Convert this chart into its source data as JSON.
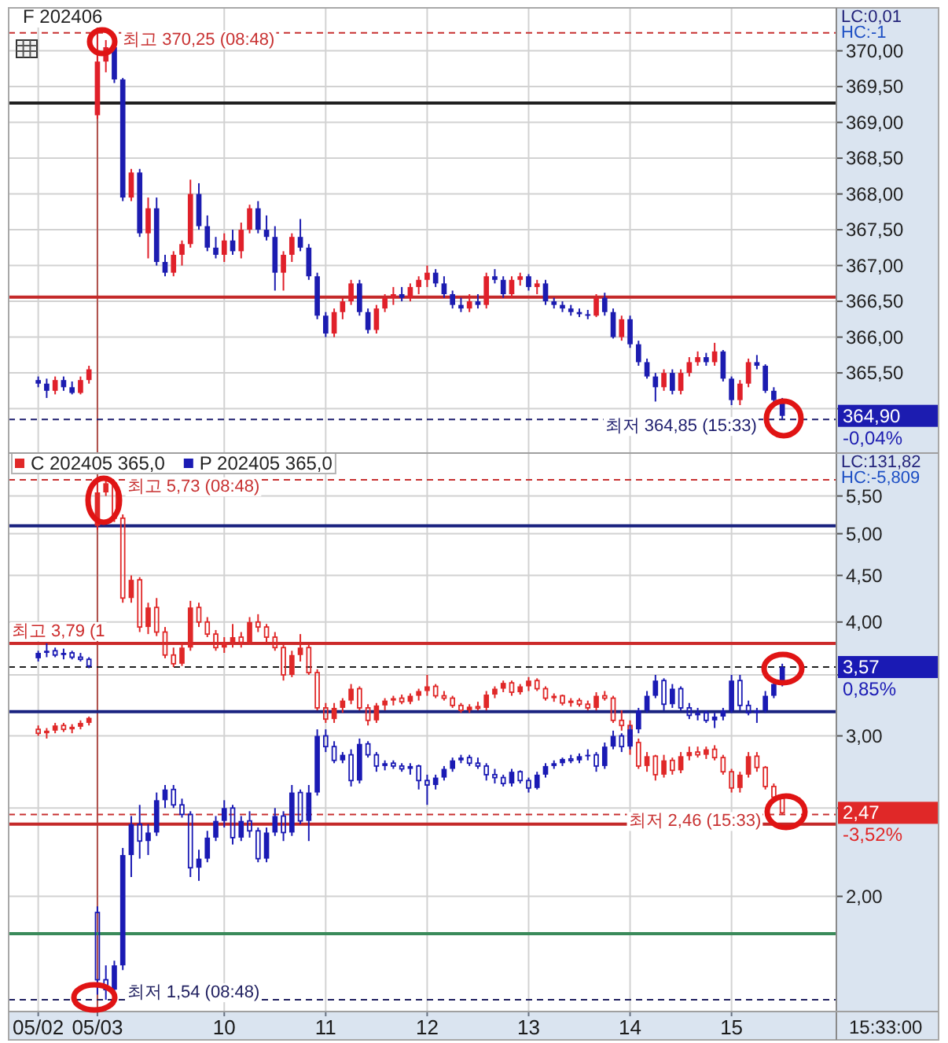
{
  "chart_data": [
    {
      "type": "candlestick",
      "title": "F 202406",
      "categories": [
        "05/02",
        null,
        null,
        null,
        null,
        null,
        null,
        "05/03",
        null,
        null,
        null,
        null,
        null,
        null,
        null,
        null,
        null,
        null,
        null,
        null,
        null,
        null,
        "10",
        null,
        null,
        null,
        null,
        null,
        null,
        null,
        null,
        null,
        null,
        null,
        "11",
        null,
        null,
        null,
        null,
        null,
        null,
        null,
        null,
        null,
        null,
        null,
        "12",
        null,
        null,
        null,
        null,
        null,
        null,
        null,
        null,
        null,
        null,
        null,
        "13",
        null,
        null,
        null,
        null,
        null,
        null,
        null,
        null,
        null,
        null,
        null,
        "14",
        null,
        null,
        null,
        null,
        null,
        null,
        null,
        null,
        null,
        null,
        null,
        "15",
        null,
        null,
        null,
        null,
        null,
        null
      ],
      "ohlc": [
        [
          365.4,
          365.45,
          365.3,
          365.35
        ],
        [
          365.35,
          365.42,
          365.15,
          365.25
        ],
        [
          365.25,
          365.45,
          365.2,
          365.4
        ],
        [
          365.4,
          365.45,
          365.25,
          365.3
        ],
        [
          365.3,
          365.38,
          365.2,
          365.22
        ],
        [
          365.22,
          365.45,
          365.2,
          365.4
        ],
        [
          365.4,
          365.6,
          365.35,
          365.55
        ],
        [
          369.1,
          370.25,
          369.05,
          369.85
        ],
        [
          369.85,
          370.15,
          369.7,
          370.05
        ],
        [
          370.05,
          370.1,
          369.55,
          369.6
        ],
        [
          369.6,
          369.62,
          367.9,
          367.95
        ],
        [
          367.95,
          368.35,
          367.9,
          368.3
        ],
        [
          368.3,
          368.35,
          367.4,
          367.45
        ],
        [
          367.45,
          367.95,
          367.1,
          367.8
        ],
        [
          367.8,
          367.95,
          367.0,
          367.05
        ],
        [
          367.05,
          367.15,
          366.85,
          366.9
        ],
        [
          366.9,
          367.2,
          366.85,
          367.15
        ],
        [
          367.15,
          367.35,
          367.0,
          367.3
        ],
        [
          367.3,
          368.2,
          367.25,
          368.0
        ],
        [
          368.0,
          368.15,
          367.5,
          367.55
        ],
        [
          367.55,
          367.7,
          367.2,
          367.25
        ],
        [
          367.25,
          367.4,
          367.1,
          367.15
        ],
        [
          367.15,
          367.45,
          367.05,
          367.35
        ],
        [
          367.35,
          367.5,
          367.15,
          367.2
        ],
        [
          367.2,
          367.6,
          367.1,
          367.5
        ],
        [
          367.5,
          367.85,
          367.45,
          367.8
        ],
        [
          367.8,
          367.9,
          367.45,
          367.5
        ],
        [
          367.5,
          367.7,
          367.35,
          367.4
        ],
        [
          367.4,
          367.55,
          366.65,
          366.9
        ],
        [
          366.9,
          367.2,
          366.65,
          367.15
        ],
        [
          367.15,
          367.45,
          367.05,
          367.4
        ],
        [
          367.4,
          367.65,
          367.2,
          367.25
        ],
        [
          367.25,
          367.3,
          366.8,
          366.85
        ],
        [
          366.85,
          366.9,
          366.25,
          366.3
        ],
        [
          366.3,
          366.35,
          366.0,
          366.05
        ],
        [
          366.05,
          366.4,
          366.0,
          366.35
        ],
        [
          366.35,
          366.55,
          366.25,
          366.5
        ],
        [
          366.5,
          366.8,
          366.45,
          366.75
        ],
        [
          366.75,
          366.8,
          366.3,
          366.35
        ],
        [
          366.35,
          366.4,
          366.05,
          366.1
        ],
        [
          366.1,
          366.45,
          366.05,
          366.4
        ],
        [
          366.4,
          366.6,
          366.35,
          366.55
        ],
        [
          366.55,
          366.7,
          366.45,
          366.6
        ],
        [
          366.6,
          366.7,
          366.5,
          366.55
        ],
        [
          366.55,
          366.75,
          366.5,
          366.7
        ],
        [
          366.7,
          366.85,
          366.6,
          366.8
        ],
        [
          366.8,
          367.0,
          366.7,
          366.9
        ],
        [
          366.9,
          366.95,
          366.7,
          366.75
        ],
        [
          366.75,
          366.85,
          366.55,
          366.6
        ],
        [
          366.6,
          366.65,
          366.4,
          366.45
        ],
        [
          366.45,
          366.55,
          366.35,
          366.4
        ],
        [
          366.4,
          366.6,
          366.35,
          366.5
        ],
        [
          366.5,
          366.6,
          366.4,
          366.45
        ],
        [
          366.45,
          366.9,
          366.4,
          366.85
        ],
        [
          366.85,
          366.95,
          366.75,
          366.8
        ],
        [
          366.8,
          366.85,
          366.55,
          366.6
        ],
        [
          366.6,
          366.85,
          366.55,
          366.8
        ],
        [
          366.8,
          366.9,
          366.72,
          366.85
        ],
        [
          366.85,
          366.88,
          366.65,
          366.7
        ],
        [
          366.7,
          366.8,
          366.6,
          366.75
        ],
        [
          366.75,
          366.8,
          366.45,
          366.5
        ],
        [
          366.5,
          366.55,
          366.4,
          366.45
        ],
        [
          366.45,
          366.5,
          366.35,
          366.4
        ],
        [
          366.4,
          366.45,
          366.3,
          366.35
        ],
        [
          366.35,
          366.4,
          366.28,
          366.32
        ],
        [
          366.32,
          366.38,
          366.25,
          366.3
        ],
        [
          366.3,
          366.6,
          366.28,
          366.55
        ],
        [
          366.55,
          366.62,
          366.3,
          366.35
        ],
        [
          366.35,
          366.4,
          365.98,
          366.0
        ],
        [
          366.0,
          366.3,
          365.95,
          366.25
        ],
        [
          366.25,
          366.3,
          365.85,
          365.9
        ],
        [
          365.9,
          365.95,
          365.6,
          365.65
        ],
        [
          365.65,
          365.7,
          365.42,
          365.45
        ],
        [
          365.45,
          365.5,
          365.1,
          365.3
        ],
        [
          365.3,
          365.55,
          365.25,
          365.5
        ],
        [
          365.5,
          365.55,
          365.2,
          365.25
        ],
        [
          365.25,
          365.55,
          365.2,
          365.5
        ],
        [
          365.5,
          365.72,
          365.45,
          365.65
        ],
        [
          365.65,
          365.8,
          365.6,
          365.72
        ],
        [
          365.72,
          365.78,
          365.6,
          365.65
        ],
        [
          365.65,
          365.92,
          365.6,
          365.8
        ],
        [
          365.8,
          365.82,
          365.38,
          365.42
        ],
        [
          365.42,
          365.45,
          365.05,
          365.12
        ],
        [
          365.12,
          365.4,
          365.05,
          365.35
        ],
        [
          365.35,
          365.7,
          365.3,
          365.65
        ],
        [
          365.65,
          365.75,
          365.55,
          365.6
        ],
        [
          365.6,
          365.62,
          365.22,
          365.25
        ],
        [
          365.25,
          365.3,
          365.08,
          365.12
        ],
        [
          365.12,
          365.15,
          364.85,
          364.9
        ]
      ],
      "colors": [
        "#1c1cb0",
        "#1c1cb0",
        "#e0202a",
        "#1c1cb0",
        "#1c1cb0",
        "#e0202a",
        "#e0202a",
        "#e0202a",
        "#e0202a",
        "#1c1cb0",
        "#1c1cb0",
        "#e0202a",
        "#1c1cb0",
        "#e0202a",
        "#1c1cb0",
        "#1c1cb0",
        "#e0202a",
        "#e0202a",
        "#e0202a",
        "#1c1cb0",
        "#1c1cb0",
        "#1c1cb0",
        "#e0202a",
        "#1c1cb0",
        "#e0202a",
        "#e0202a",
        "#1c1cb0",
        "#1c1cb0",
        "#1c1cb0",
        "#e0202a",
        "#e0202a",
        "#1c1cb0",
        "#1c1cb0",
        "#1c1cb0",
        "#1c1cb0",
        "#e0202a",
        "#e0202a",
        "#e0202a",
        "#1c1cb0",
        "#1c1cb0",
        "#e0202a",
        "#e0202a",
        "#e0202a",
        "#1c1cb0",
        "#e0202a",
        "#e0202a",
        "#e0202a",
        "#1c1cb0",
        "#1c1cb0",
        "#1c1cb0",
        "#1c1cb0",
        "#e0202a",
        "#1c1cb0",
        "#e0202a",
        "#1c1cb0",
        "#1c1cb0",
        "#e0202a",
        "#e0202a",
        "#1c1cb0",
        "#e0202a",
        "#1c1cb0",
        "#1c1cb0",
        "#1c1cb0",
        "#1c1cb0",
        "#1c1cb0",
        "#1c1cb0",
        "#e0202a",
        "#1c1cb0",
        "#1c1cb0",
        "#e0202a",
        "#1c1cb0",
        "#1c1cb0",
        "#1c1cb0",
        "#1c1cb0",
        "#e0202a",
        "#1c1cb0",
        "#e0202a",
        "#e0202a",
        "#e0202a",
        "#1c1cb0",
        "#e0202a",
        "#1c1cb0",
        "#1c1cb0",
        "#e0202a",
        "#e0202a",
        "#1c1cb0",
        "#1c1cb0",
        "#1c1cb0",
        "#1c1cb0"
      ],
      "ylim": [
        364.38,
        370.6
      ],
      "yticks": [
        {
          "value": 365,
          "label": null
        },
        {
          "value": 365.5,
          "label": "365,50"
        },
        {
          "value": 366,
          "label": "366,00"
        },
        {
          "value": 366.5,
          "label": "366,50"
        },
        {
          "value": 367,
          "label": "367,00"
        },
        {
          "value": 367.5,
          "label": "367,50"
        },
        {
          "value": 368,
          "label": "368,00"
        },
        {
          "value": 368.5,
          "label": "368,50"
        },
        {
          "value": 369,
          "label": "369,00"
        },
        {
          "value": 369.5,
          "label": "369,50"
        },
        {
          "value": 370,
          "label": "370,00"
        }
      ],
      "grid": true,
      "tick_labels": "y",
      "ref_lines": [
        {
          "axis": "x",
          "value": "05/03",
          "color": "#b0504a"
        },
        {
          "axis": "y",
          "value": 370.25,
          "label": "최고 370,25 (08:48)",
          "color": "#c83232",
          "line_style": "dashed"
        },
        {
          "axis": "y",
          "value": 369.27,
          "color": "#202020"
        },
        {
          "axis": "y",
          "value": 366.56,
          "color": "#c42a2a"
        },
        {
          "axis": "y",
          "value": 364.85,
          "label": "최저 364,85 (15:33)",
          "color": "#1e1e6e",
          "line_style": "dashed"
        }
      ],
      "annotations": [
        "LC:0,01",
        "HC:-1",
        "364,90",
        "-0,04%"
      ]
    },
    {
      "type": "candlestick",
      "categories": [
        "05/02",
        null,
        null,
        null,
        null,
        null,
        null,
        "05/03",
        null,
        null,
        null,
        null,
        null,
        null,
        null,
        null,
        null,
        null,
        null,
        null,
        null,
        null,
        "10",
        null,
        null,
        null,
        null,
        null,
        null,
        null,
        null,
        null,
        null,
        null,
        "11",
        null,
        null,
        null,
        null,
        null,
        null,
        null,
        null,
        null,
        null,
        null,
        "12",
        null,
        null,
        null,
        null,
        null,
        null,
        null,
        null,
        null,
        null,
        null,
        "13",
        null,
        null,
        null,
        null,
        null,
        null,
        null,
        null,
        null,
        null,
        null,
        "14",
        null,
        null,
        null,
        null,
        null,
        null,
        null,
        null,
        null,
        null,
        null,
        "15",
        null,
        null,
        null,
        null,
        null,
        null
      ],
      "series": [
        {
          "name": "C 202405 365,0",
          "color": "#e02828",
          "ohlc": [
            [
              3.05,
              3.08,
              3.0,
              3.02
            ],
            [
              3.02,
              3.06,
              2.98,
              3.04
            ],
            [
              3.04,
              3.1,
              3.02,
              3.08
            ],
            [
              3.08,
              3.1,
              3.03,
              3.05
            ],
            [
              3.05,
              3.09,
              3.02,
              3.07
            ],
            [
              3.07,
              3.12,
              3.05,
              3.1
            ],
            [
              3.1,
              3.15,
              3.08,
              3.14
            ],
            [
              5.1,
              5.73,
              5.05,
              5.55
            ],
            [
              5.55,
              5.72,
              5.5,
              5.68
            ],
            [
              5.68,
              5.7,
              5.15,
              5.2
            ],
            [
              5.2,
              5.25,
              4.2,
              4.25
            ],
            [
              4.25,
              4.5,
              4.2,
              4.45
            ],
            [
              4.45,
              4.48,
              3.9,
              3.95
            ],
            [
              3.95,
              4.2,
              3.88,
              4.15
            ],
            [
              4.15,
              4.25,
              3.86,
              3.9
            ],
            [
              3.9,
              3.95,
              3.65,
              3.68
            ],
            [
              3.68,
              3.75,
              3.57,
              3.6
            ],
            [
              3.6,
              3.8,
              3.58,
              3.75
            ],
            [
              3.75,
              4.22,
              3.72,
              4.15
            ],
            [
              4.15,
              4.2,
              3.95,
              4.0
            ],
            [
              4.0,
              4.05,
              3.85,
              3.88
            ],
            [
              3.88,
              3.92,
              3.72,
              3.75
            ],
            [
              3.75,
              3.85,
              3.7,
              3.8
            ],
            [
              3.8,
              3.98,
              3.75,
              3.85
            ],
            [
              3.85,
              3.9,
              3.75,
              3.8
            ],
            [
              3.8,
              4.05,
              3.78,
              4.0
            ],
            [
              4.0,
              4.08,
              3.9,
              3.95
            ],
            [
              3.95,
              3.98,
              3.8,
              3.85
            ],
            [
              3.85,
              3.9,
              3.72,
              3.75
            ],
            [
              3.75,
              3.78,
              3.45,
              3.5
            ],
            [
              3.5,
              3.72,
              3.48,
              3.68
            ],
            [
              3.68,
              3.88,
              3.62,
              3.75
            ],
            [
              3.75,
              3.78,
              3.5,
              3.52
            ],
            [
              3.52,
              3.55,
              3.2,
              3.22
            ],
            [
              3.22,
              3.26,
              3.1,
              3.13
            ],
            [
              3.13,
              3.26,
              3.1,
              3.22
            ],
            [
              3.22,
              3.3,
              3.18,
              3.28
            ],
            [
              3.28,
              3.42,
              3.25,
              3.38
            ],
            [
              3.38,
              3.4,
              3.2,
              3.22
            ],
            [
              3.22,
              3.25,
              3.08,
              3.12
            ],
            [
              3.12,
              3.26,
              3.1,
              3.24
            ],
            [
              3.24,
              3.3,
              3.2,
              3.28
            ],
            [
              3.28,
              3.32,
              3.24,
              3.3
            ],
            [
              3.3,
              3.33,
              3.25,
              3.27
            ],
            [
              3.27,
              3.34,
              3.25,
              3.32
            ],
            [
              3.32,
              3.38,
              3.28,
              3.36
            ],
            [
              3.36,
              3.5,
              3.32,
              3.4
            ],
            [
              3.4,
              3.42,
              3.3,
              3.32
            ],
            [
              3.32,
              3.36,
              3.28,
              3.3
            ],
            [
              3.3,
              3.32,
              3.22,
              3.24
            ],
            [
              3.24,
              3.26,
              3.18,
              3.2
            ],
            [
              3.2,
              3.25,
              3.18,
              3.23
            ],
            [
              3.23,
              3.27,
              3.2,
              3.22
            ],
            [
              3.22,
              3.36,
              3.2,
              3.33
            ],
            [
              3.33,
              3.4,
              3.3,
              3.38
            ],
            [
              3.38,
              3.45,
              3.35,
              3.43
            ],
            [
              3.43,
              3.45,
              3.32,
              3.35
            ],
            [
              3.35,
              3.42,
              3.33,
              3.4
            ],
            [
              3.4,
              3.48,
              3.36,
              3.45
            ],
            [
              3.45,
              3.47,
              3.36,
              3.38
            ],
            [
              3.38,
              3.4,
              3.28,
              3.3
            ],
            [
              3.3,
              3.34,
              3.27,
              3.32
            ],
            [
              3.32,
              3.33,
              3.24,
              3.26
            ],
            [
              3.26,
              3.3,
              3.23,
              3.28
            ],
            [
              3.28,
              3.3,
              3.23,
              3.25
            ],
            [
              3.25,
              3.28,
              3.2,
              3.22
            ],
            [
              3.22,
              3.35,
              3.2,
              3.32
            ],
            [
              3.32,
              3.36,
              3.28,
              3.3
            ],
            [
              3.3,
              3.32,
              3.1,
              3.12
            ],
            [
              3.12,
              3.2,
              3.04,
              3.08
            ],
            [
              3.08,
              3.12,
              2.86,
              2.95
            ],
            [
              2.95,
              2.98,
              2.76,
              2.78
            ],
            [
              2.78,
              2.88,
              2.74,
              2.85
            ],
            [
              2.85,
              2.86,
              2.68,
              2.72
            ],
            [
              2.72,
              2.86,
              2.7,
              2.82
            ],
            [
              2.82,
              2.84,
              2.72,
              2.75
            ],
            [
              2.75,
              2.88,
              2.73,
              2.85
            ],
            [
              2.85,
              2.92,
              2.82,
              2.88
            ],
            [
              2.88,
              2.92,
              2.84,
              2.86
            ],
            [
              2.86,
              2.92,
              2.83,
              2.9
            ],
            [
              2.9,
              2.93,
              2.82,
              2.84
            ],
            [
              2.84,
              2.86,
              2.72,
              2.74
            ],
            [
              2.74,
              2.76,
              2.6,
              2.63
            ],
            [
              2.63,
              2.74,
              2.6,
              2.72
            ],
            [
              2.72,
              2.88,
              2.7,
              2.85
            ],
            [
              2.85,
              2.88,
              2.74,
              2.77
            ],
            [
              2.77,
              2.78,
              2.62,
              2.64
            ],
            [
              2.64,
              2.66,
              2.55,
              2.57
            ],
            [
              2.57,
              2.58,
              2.46,
              2.47
            ]
          ]
        },
        {
          "name": "P 202405 365,0",
          "color": "#1a1ab4",
          "ohlc": [
            [
              3.65,
              3.72,
              3.62,
              3.7
            ],
            [
              3.7,
              3.79,
              3.66,
              3.72
            ],
            [
              3.72,
              3.75,
              3.66,
              3.68
            ],
            [
              3.68,
              3.74,
              3.64,
              3.7
            ],
            [
              3.7,
              3.72,
              3.64,
              3.66
            ],
            [
              3.66,
              3.7,
              3.62,
              3.64
            ],
            [
              3.64,
              3.66,
              3.56,
              3.58
            ],
            [
              1.92,
              1.95,
              1.56,
              1.62
            ],
            [
              1.62,
              1.68,
              1.54,
              1.58
            ],
            [
              1.58,
              1.7,
              1.56,
              1.68
            ],
            [
              1.68,
              2.26,
              1.66,
              2.22
            ],
            [
              2.22,
              2.45,
              2.1,
              2.4
            ],
            [
              2.4,
              2.52,
              2.2,
              2.3
            ],
            [
              2.3,
              2.4,
              2.22,
              2.35
            ],
            [
              2.35,
              2.6,
              2.33,
              2.55
            ],
            [
              2.55,
              2.65,
              2.5,
              2.62
            ],
            [
              2.62,
              2.65,
              2.5,
              2.52
            ],
            [
              2.52,
              2.56,
              2.44,
              2.46
            ],
            [
              2.46,
              2.48,
              2.1,
              2.15
            ],
            [
              2.15,
              2.25,
              2.08,
              2.2
            ],
            [
              2.2,
              2.36,
              2.18,
              2.32
            ],
            [
              2.32,
              2.45,
              2.3,
              2.42
            ],
            [
              2.42,
              2.55,
              2.38,
              2.5
            ],
            [
              2.5,
              2.52,
              2.28,
              2.32
            ],
            [
              2.32,
              2.45,
              2.3,
              2.42
            ],
            [
              2.42,
              2.48,
              2.32,
              2.36
            ],
            [
              2.36,
              2.38,
              2.18,
              2.2
            ],
            [
              2.2,
              2.38,
              2.18,
              2.35
            ],
            [
              2.35,
              2.5,
              2.33,
              2.45
            ],
            [
              2.45,
              2.48,
              2.3,
              2.35
            ],
            [
              2.35,
              2.65,
              2.33,
              2.6
            ],
            [
              2.6,
              2.62,
              2.4,
              2.42
            ],
            [
              2.42,
              2.65,
              2.3,
              2.6
            ],
            [
              2.6,
              3.05,
              2.58,
              3.0
            ],
            [
              3.0,
              3.05,
              2.88,
              2.92
            ],
            [
              2.92,
              2.96,
              2.8,
              2.82
            ],
            [
              2.82,
              2.88,
              2.8,
              2.86
            ],
            [
              2.86,
              2.9,
              2.64,
              2.68
            ],
            [
              2.68,
              2.98,
              2.66,
              2.94
            ],
            [
              2.94,
              2.96,
              2.84,
              2.86
            ],
            [
              2.86,
              2.88,
              2.74,
              2.78
            ],
            [
              2.78,
              2.82,
              2.75,
              2.8
            ],
            [
              2.8,
              2.82,
              2.76,
              2.78
            ],
            [
              2.78,
              2.8,
              2.74,
              2.76
            ],
            [
              2.76,
              2.8,
              2.72,
              2.78
            ],
            [
              2.78,
              2.79,
              2.62,
              2.68
            ],
            [
              2.68,
              2.72,
              2.52,
              2.65
            ],
            [
              2.65,
              2.72,
              2.62,
              2.7
            ],
            [
              2.7,
              2.78,
              2.68,
              2.76
            ],
            [
              2.76,
              2.84,
              2.74,
              2.82
            ],
            [
              2.82,
              2.86,
              2.8,
              2.84
            ],
            [
              2.84,
              2.86,
              2.78,
              2.8
            ],
            [
              2.8,
              2.84,
              2.76,
              2.78
            ],
            [
              2.78,
              2.8,
              2.68,
              2.72
            ],
            [
              2.72,
              2.76,
              2.66,
              2.7
            ],
            [
              2.7,
              2.72,
              2.64,
              2.66
            ],
            [
              2.66,
              2.76,
              2.64,
              2.74
            ],
            [
              2.74,
              2.75,
              2.66,
              2.68
            ],
            [
              2.68,
              2.7,
              2.6,
              2.63
            ],
            [
              2.63,
              2.74,
              2.62,
              2.72
            ],
            [
              2.72,
              2.8,
              2.7,
              2.78
            ],
            [
              2.78,
              2.82,
              2.76,
              2.8
            ],
            [
              2.8,
              2.84,
              2.78,
              2.83
            ],
            [
              2.83,
              2.86,
              2.8,
              2.82
            ],
            [
              2.82,
              2.87,
              2.8,
              2.85
            ],
            [
              2.85,
              2.9,
              2.82,
              2.86
            ],
            [
              2.86,
              2.88,
              2.74,
              2.78
            ],
            [
              2.78,
              2.95,
              2.76,
              2.92
            ],
            [
              2.92,
              3.04,
              2.9,
              3.0
            ],
            [
              3.0,
              3.02,
              2.88,
              2.92
            ],
            [
              2.92,
              3.08,
              2.9,
              3.05
            ],
            [
              3.05,
              3.22,
              3.02,
              3.2
            ],
            [
              3.2,
              3.36,
              3.18,
              3.32
            ],
            [
              3.32,
              3.5,
              3.3,
              3.45
            ],
            [
              3.45,
              3.47,
              3.2,
              3.25
            ],
            [
              3.25,
              3.42,
              3.22,
              3.38
            ],
            [
              3.38,
              3.4,
              3.2,
              3.22
            ],
            [
              3.22,
              3.26,
              3.13,
              3.16
            ],
            [
              3.16,
              3.22,
              3.12,
              3.18
            ],
            [
              3.18,
              3.2,
              3.1,
              3.12
            ],
            [
              3.12,
              3.18,
              3.06,
              3.15
            ],
            [
              3.15,
              3.22,
              3.12,
              3.2
            ],
            [
              3.2,
              3.5,
              3.18,
              3.45
            ],
            [
              3.45,
              3.5,
              3.2,
              3.24
            ],
            [
              3.24,
              3.28,
              3.16,
              3.18
            ],
            [
              3.18,
              3.22,
              3.1,
              3.2
            ],
            [
              3.2,
              3.36,
              3.18,
              3.32
            ],
            [
              3.32,
              3.45,
              3.3,
              3.42
            ],
            [
              3.42,
              3.6,
              3.4,
              3.57
            ]
          ]
        }
      ],
      "legend": "top left",
      "log": "y",
      "ylim": [
        1.495,
        6.13
      ],
      "yticks": [
        {
          "value": 2,
          "label": "2,00"
        },
        {
          "value": 2.5,
          "label": null
        },
        {
          "value": 3,
          "label": "3,00"
        },
        {
          "value": 3.5,
          "label": null
        },
        {
          "value": 4,
          "label": "4,00"
        },
        {
          "value": 4.5,
          "label": "4,50"
        },
        {
          "value": 5,
          "label": "5,00"
        },
        {
          "value": 5.5,
          "label": "5,50"
        }
      ],
      "grid": true,
      "xlabel": "15:33:00",
      "ref_lines": [
        {
          "axis": "x",
          "value": "05/03",
          "color": "#b0504a"
        },
        {
          "axis": "y",
          "value": 5.73,
          "label": "최고 5,73 (08:48)",
          "color": "#c83232",
          "line_style": "dashed"
        },
        {
          "axis": "y",
          "value": 5.1,
          "color": "#1a2380"
        },
        {
          "axis": "y",
          "value": 3.79,
          "label": "최고 3,79 (1",
          "color": "#cc2a2a"
        },
        {
          "axis": "y",
          "value": 3.57,
          "color": "#202020",
          "line_style": "dashed"
        },
        {
          "axis": "y",
          "value": 3.19,
          "color": "#1a2380"
        },
        {
          "axis": "y",
          "value": 2.46,
          "label": "최저 2,46 (15:33)",
          "color": "#c83232",
          "line_style": "dashed"
        },
        {
          "axis": "y",
          "value": 2.4,
          "color": "#c42a2a"
        },
        {
          "axis": "y",
          "value": 1.82,
          "color": "#3a8a5a"
        },
        {
          "axis": "y",
          "value": 1.54,
          "label": "최저 1,54 (08:48)",
          "color": "#202060",
          "line_style": "dashed"
        }
      ],
      "annotations": [
        "LC:131,82",
        "HC:-5,809",
        "3,57",
        "0,85%",
        "2,47",
        "-3,52%"
      ]
    }
  ]
}
